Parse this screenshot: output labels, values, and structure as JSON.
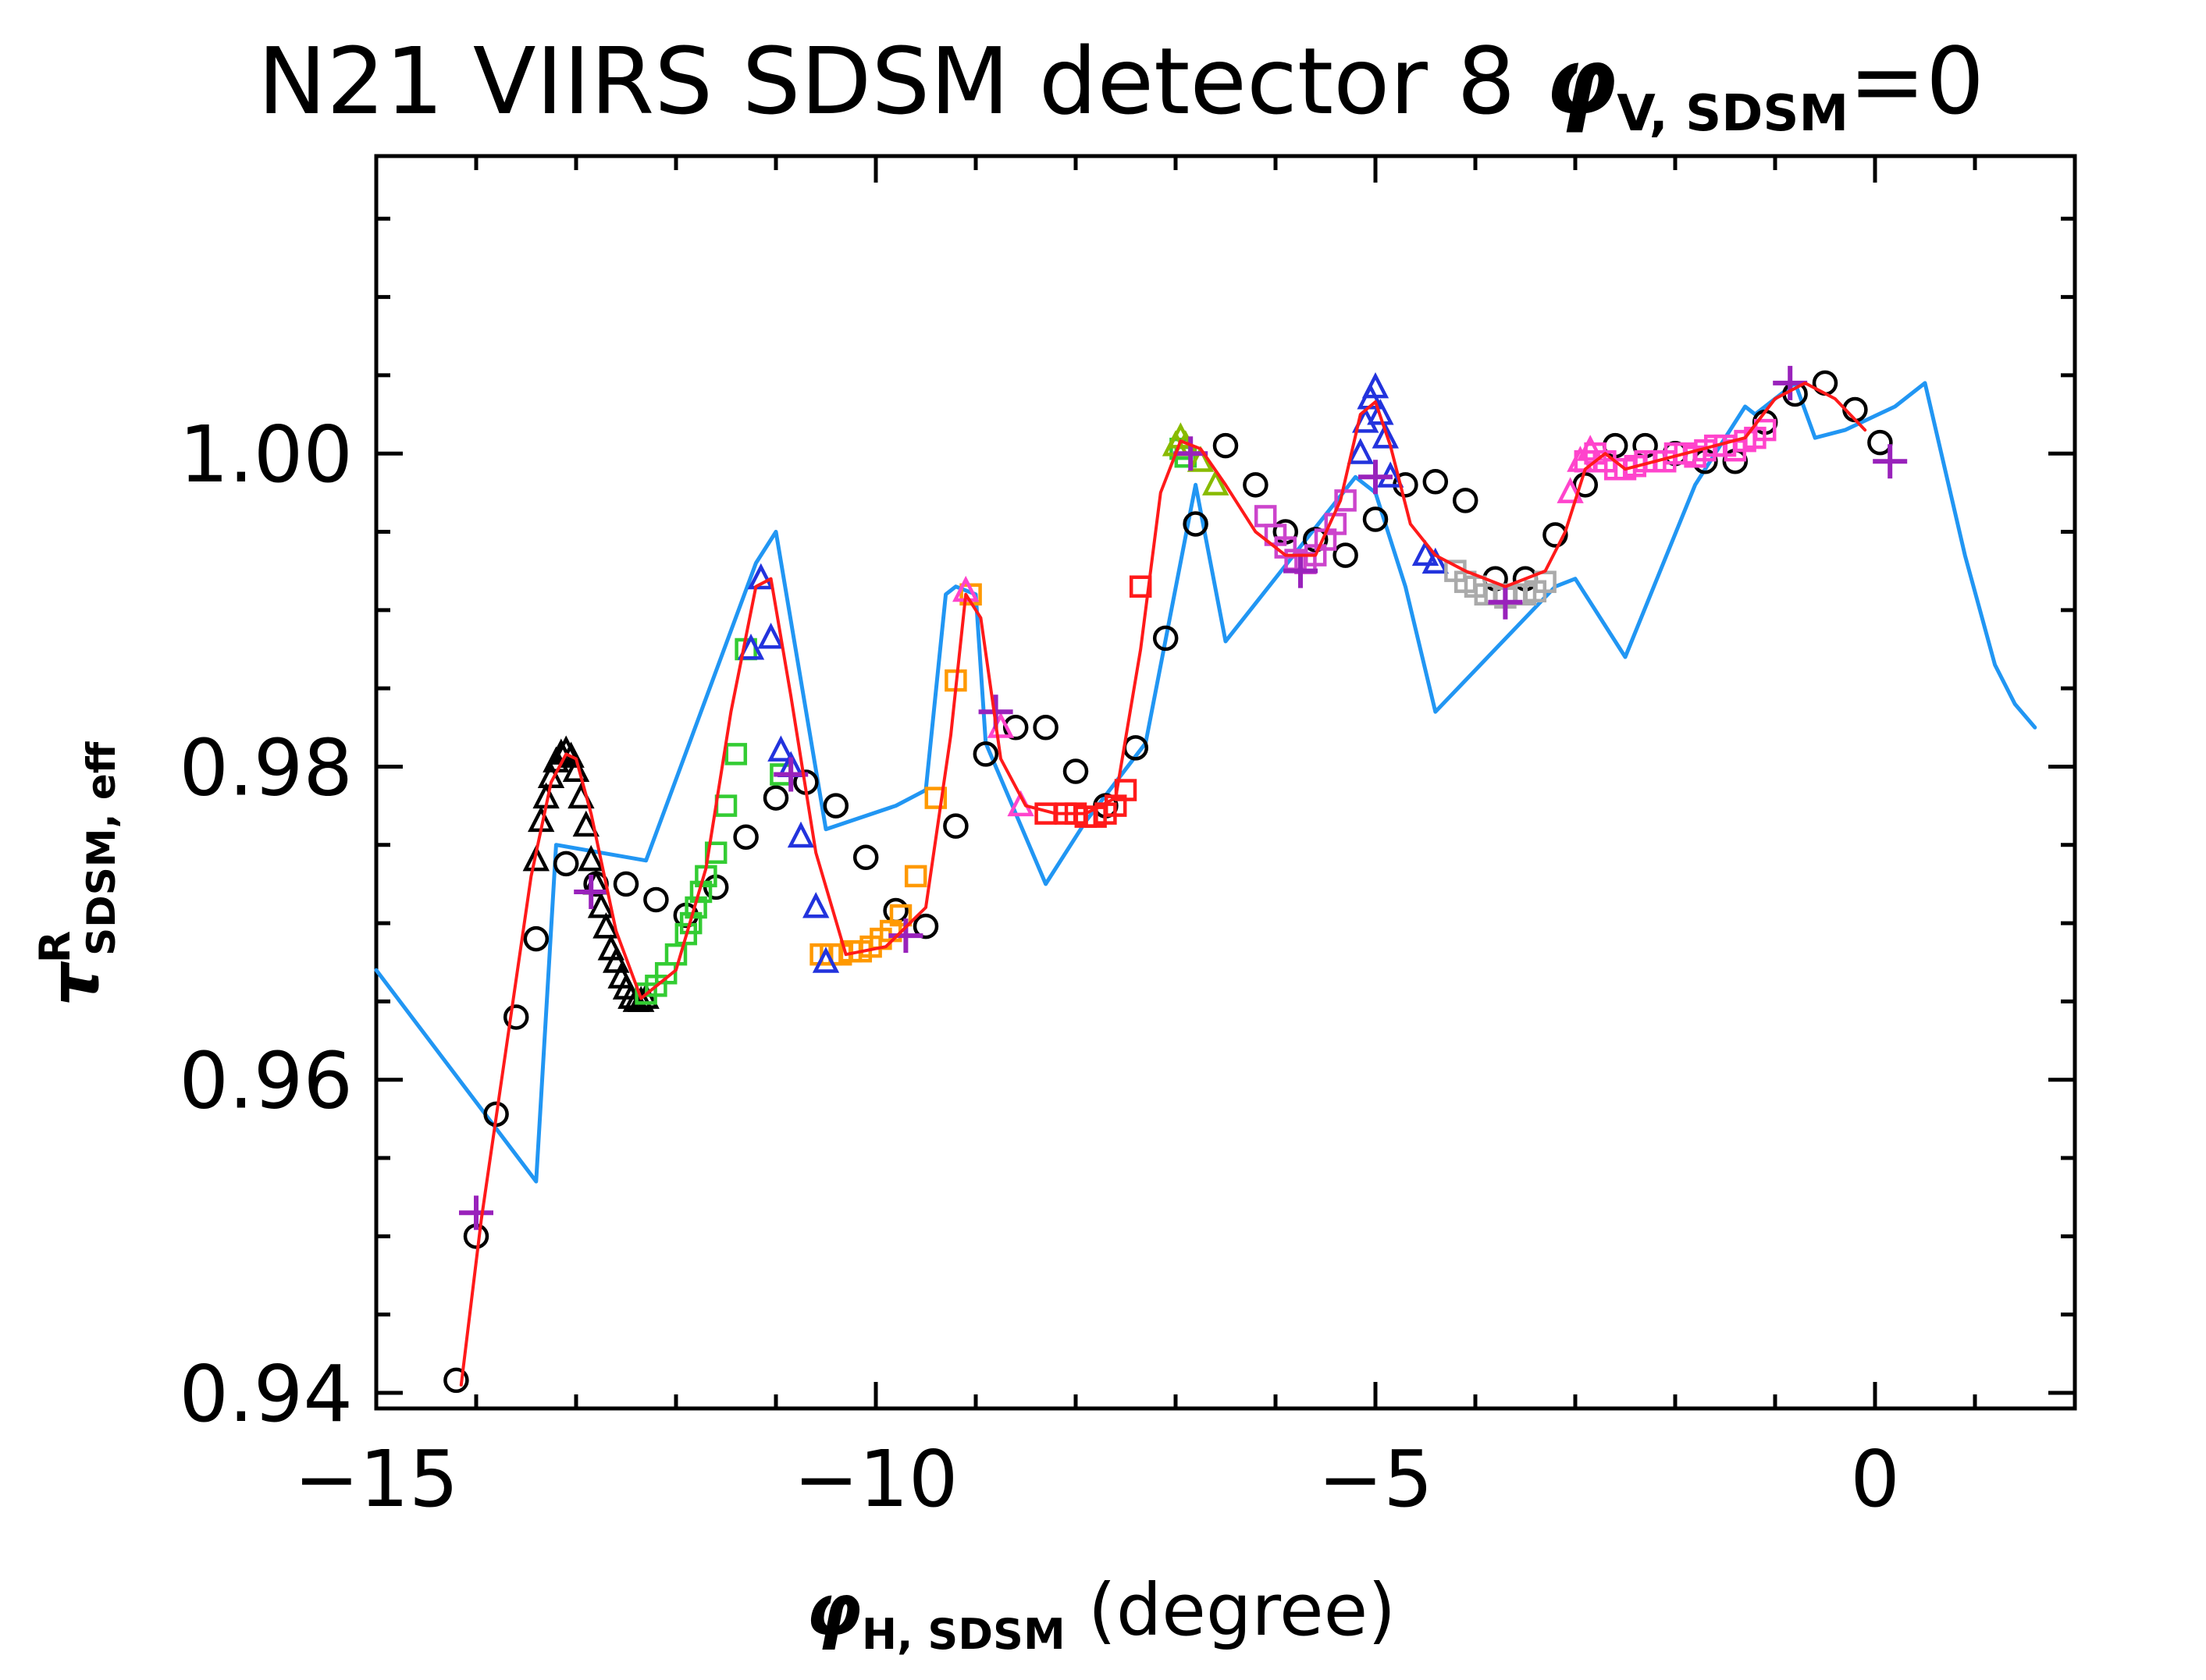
{
  "chart_data": {
    "type": "scatter",
    "title": {
      "prefix": "N21 VIIRS SDSM detector 8 ",
      "symbol": "φ",
      "subscript": "V, SDSM",
      "suffix": "=0"
    },
    "xlabel": {
      "symbol": "φ",
      "subscript": "H, SDSM",
      "suffix": " (degree)"
    },
    "ylabel": {
      "symbol": "τ",
      "superscript": "R",
      "subscript": "SDSM, eff"
    },
    "xlim": [
      -15,
      2
    ],
    "ylim": [
      0.939,
      1.019
    ],
    "x_ticks": [
      -15,
      -10,
      -5,
      0
    ],
    "x_tick_labels": [
      "−15",
      "−10",
      "−5",
      "0"
    ],
    "x_minor_step": 1,
    "y_ticks": [
      0.94,
      0.96,
      0.98,
      1.0
    ],
    "y_tick_labels": [
      "0.94",
      "0.96",
      "0.98",
      "1.00"
    ],
    "y_minor_step": 0.005,
    "grid": false,
    "legend": "none",
    "series": [
      {
        "name": "blue line",
        "kind": "line",
        "color": "#2196F3",
        "x": [
          -15.0,
          -13.4,
          -13.2,
          -12.3,
          -11.2,
          -11.0,
          -10.5,
          -9.8,
          -9.5,
          -9.3,
          -9.2,
          -9.0,
          -8.9,
          -8.3,
          -7.9,
          -7.3,
          -6.8,
          -6.5,
          -5.2,
          -5.0,
          -4.7,
          -4.4,
          -3.2,
          -3.0,
          -2.7,
          -2.5,
          -1.8,
          -1.3,
          -1.2,
          -1.0,
          -0.8,
          -0.6,
          -0.3,
          0.2,
          0.5,
          0.9,
          1.2,
          1.4,
          1.6
        ],
        "y": [
          0.967,
          0.9535,
          0.975,
          0.974,
          0.993,
          0.995,
          0.976,
          0.9775,
          0.9785,
          0.991,
          0.9915,
          0.991,
          0.9815,
          0.9725,
          0.9765,
          0.9815,
          0.998,
          0.988,
          0.9985,
          0.9975,
          0.9915,
          0.9835,
          0.9915,
          0.992,
          0.989,
          0.987,
          0.998,
          1.003,
          1.0025,
          1.0035,
          1.0045,
          1.001,
          1.0015,
          1.003,
          1.0045,
          0.9935,
          0.9865,
          0.984,
          0.9825
        ]
      },
      {
        "name": "red model",
        "kind": "line",
        "color": "#FF1A1A",
        "x": [
          -14.15,
          -13.95,
          -13.7,
          -13.45,
          -13.25,
          -13.1,
          -13.0,
          -12.85,
          -12.6,
          -12.35,
          -12.0,
          -11.7,
          -11.45,
          -11.2,
          -11.05,
          -10.85,
          -10.6,
          -10.3,
          -9.9,
          -9.5,
          -9.25,
          -9.1,
          -8.95,
          -8.75,
          -8.5,
          -8.2,
          -7.9,
          -7.6,
          -7.35,
          -7.15,
          -6.95,
          -6.75,
          -6.5,
          -6.2,
          -5.9,
          -5.6,
          -5.35,
          -5.15,
          -5.0,
          -4.85,
          -4.65,
          -4.4,
          -4.1,
          -3.7,
          -3.3,
          -3.1,
          -2.9,
          -2.7,
          -2.5,
          -2.2,
          -1.9,
          -1.6,
          -1.3,
          -1.0,
          -0.7,
          -0.4,
          -0.1
        ],
        "y": [
          0.9405,
          0.951,
          0.962,
          0.973,
          0.979,
          0.9808,
          0.9805,
          0.977,
          0.9695,
          0.9652,
          0.967,
          0.9735,
          0.9835,
          0.9915,
          0.992,
          0.9845,
          0.9745,
          0.968,
          0.9685,
          0.971,
          0.982,
          0.991,
          0.9895,
          0.9805,
          0.9775,
          0.977,
          0.977,
          0.978,
          0.9875,
          0.9975,
          1.0008,
          1.0003,
          0.998,
          0.995,
          0.9935,
          0.9935,
          0.997,
          1.0025,
          1.0033,
          1.0005,
          0.9955,
          0.9935,
          0.9925,
          0.9915,
          0.9925,
          0.995,
          0.999,
          1.0,
          0.999,
          0.9995,
          1.0,
          1.0005,
          1.001,
          1.0035,
          1.0045,
          1.0035,
          1.0015
        ]
      },
      {
        "name": "black circles",
        "kind": "scatter",
        "marker": "circle",
        "color": "#000000",
        "x": [
          -14.2,
          -14.0,
          -13.8,
          -13.6,
          -13.4,
          -13.1,
          -12.8,
          -12.5,
          -12.2,
          -11.9,
          -11.6,
          -11.3,
          -11.0,
          -10.7,
          -10.4,
          -10.1,
          -9.8,
          -9.5,
          -9.2,
          -8.9,
          -8.6,
          -8.3,
          -8.0,
          -7.7,
          -7.4,
          -7.1,
          -6.8,
          -6.5,
          -6.2,
          -5.9,
          -5.6,
          -5.3,
          -5.0,
          -4.7,
          -4.4,
          -4.1,
          -3.8,
          -3.5,
          -3.2,
          -2.9,
          -2.6,
          -2.3,
          -2.0,
          -1.7,
          -1.4,
          -1.1,
          -0.8,
          -0.5,
          -0.2,
          0.05
        ],
        "y": [
          0.9408,
          0.95,
          0.9578,
          0.964,
          0.969,
          0.9738,
          0.9725,
          0.9725,
          0.9715,
          0.9705,
          0.9723,
          0.9755,
          0.978,
          0.979,
          0.9775,
          0.9742,
          0.9708,
          0.9698,
          0.9762,
          0.9808,
          0.9825,
          0.9825,
          0.9797,
          0.9775,
          0.9812,
          0.9882,
          0.9955,
          1.0005,
          0.998,
          0.995,
          0.9945,
          0.9935,
          0.9958,
          0.998,
          0.9982,
          0.997,
          0.992,
          0.992,
          0.9948,
          0.998,
          1.0005,
          1.0005,
          1.0,
          0.9995,
          0.9995,
          1.002,
          1.0038,
          1.0045,
          1.0028,
          1.0007
        ]
      },
      {
        "name": "black triangles",
        "kind": "scatter",
        "marker": "triangle",
        "color": "#000000",
        "x": [
          -13.4,
          -13.35,
          -13.3,
          -13.25,
          -13.2,
          -13.15,
          -13.1,
          -13.05,
          -13.0,
          -12.95,
          -12.9,
          -12.85,
          -12.8,
          -12.75,
          -12.7,
          -12.65,
          -12.6,
          -12.55,
          -12.5,
          -12.45,
          -12.4,
          -12.35,
          -12.3
        ],
        "y": [
          0.974,
          0.9765,
          0.978,
          0.9793,
          0.9803,
          0.9808,
          0.981,
          0.9806,
          0.9797,
          0.978,
          0.9762,
          0.974,
          0.9725,
          0.971,
          0.9697,
          0.9683,
          0.9675,
          0.9665,
          0.9658,
          0.9652,
          0.965,
          0.965,
          0.9652
        ]
      },
      {
        "name": "green squares",
        "kind": "scatter",
        "marker": "square",
        "color": "#33CC33",
        "x": [
          -12.3,
          -12.2,
          -12.1,
          -12.0,
          -11.9,
          -11.85,
          -11.8,
          -11.75,
          -11.7,
          -11.6,
          -11.5,
          -11.4,
          -11.3,
          -10.95,
          -6.95,
          -6.9
        ],
        "y": [
          0.9655,
          0.966,
          0.9668,
          0.968,
          0.9693,
          0.97,
          0.971,
          0.972,
          0.973,
          0.9745,
          0.9775,
          0.9808,
          0.9875,
          0.9795,
          1.0003,
          0.9998
        ]
      },
      {
        "name": "orange squares",
        "kind": "scatter",
        "marker": "square",
        "color": "#FF9900",
        "x": [
          -10.55,
          -10.45,
          -10.35,
          -10.25,
          -10.15,
          -10.05,
          -9.95,
          -9.85,
          -9.75,
          -9.6,
          -9.4,
          -9.2,
          -9.05
        ],
        "y": [
          0.968,
          0.968,
          0.968,
          0.9682,
          0.9682,
          0.9685,
          0.969,
          0.9695,
          0.9705,
          0.973,
          0.978,
          0.9855,
          0.991
        ]
      },
      {
        "name": "red squares",
        "kind": "scatter",
        "marker": "square",
        "color": "#FF1A1A",
        "x": [
          -8.3,
          -8.1,
          -8.0,
          -7.9,
          -7.8,
          -7.7,
          -7.6,
          -7.5,
          -7.35
        ],
        "y": [
          0.977,
          0.977,
          0.977,
          0.9768,
          0.9768,
          0.977,
          0.9775,
          0.9785,
          0.9915
        ]
      },
      {
        "name": "blue triangles",
        "kind": "scatter",
        "marker": "triangle",
        "color": "#2233DD",
        "x": [
          -11.25,
          -11.15,
          -11.05,
          -10.95,
          -10.85,
          -10.75,
          -10.6,
          -10.5,
          -5.15,
          -5.1,
          -5.05,
          -5.0,
          -4.95,
          -4.9,
          -4.85,
          -4.5,
          -4.4
        ],
        "y": [
          0.9875,
          0.992,
          0.9882,
          0.981,
          0.98,
          0.9755,
          0.971,
          0.9675,
          1.0,
          1.002,
          1.0035,
          1.0042,
          1.0025,
          1.001,
          0.9985,
          0.9935,
          0.993
        ]
      },
      {
        "name": "purple squares",
        "kind": "scatter",
        "marker": "square",
        "color": "#CC44CC",
        "x": [
          -6.1,
          -6.0,
          -5.9,
          -5.8,
          -5.7,
          -5.6,
          -5.5,
          -5.4,
          -5.3
        ],
        "y": [
          0.996,
          0.9948,
          0.994,
          0.9932,
          0.993,
          0.9935,
          0.9945,
          0.9955,
          0.997
        ]
      },
      {
        "name": "gray squares",
        "kind": "scatter",
        "marker": "square",
        "color": "#AAAAAA",
        "x": [
          -4.2,
          -4.1,
          -4.0,
          -3.9,
          -3.8,
          -3.7,
          -3.6,
          -3.5,
          -3.4,
          -3.3
        ],
        "y": [
          0.9925,
          0.9918,
          0.9915,
          0.991,
          0.991,
          0.9908,
          0.991,
          0.991,
          0.9912,
          0.9918
        ]
      },
      {
        "name": "magenta squares",
        "kind": "scatter",
        "marker": "square",
        "color": "#FF44CC",
        "x": [
          -2.9,
          -2.8,
          -2.7,
          -2.6,
          -2.5,
          -2.4,
          -2.3,
          -2.2,
          -2.1,
          -2.0,
          -1.9,
          -1.8,
          -1.7,
          -1.6,
          -1.5,
          -1.4,
          -1.3,
          -1.2,
          -1.1
        ],
        "y": [
          0.9995,
          1.0,
          0.9995,
          0.999,
          0.999,
          0.9992,
          0.9995,
          0.9995,
          0.9995,
          1.0,
          1.0,
          0.9998,
          1.0002,
          1.0005,
          1.0005,
          1.0002,
          1.0008,
          1.001,
          1.0015
        ]
      },
      {
        "name": "magenta triangles",
        "kind": "scatter",
        "marker": "triangle",
        "color": "#FF44CC",
        "x": [
          -3.05,
          -2.95,
          -2.85,
          -9.1,
          -8.75,
          -8.55
        ],
        "y": [
          0.9975,
          0.9995,
          1.0002,
          0.9912,
          0.9825,
          0.9775
        ]
      },
      {
        "name": "olive triangles",
        "kind": "scatter",
        "marker": "triangle",
        "color": "#88BB00",
        "x": [
          -7.0,
          -6.95,
          -6.9,
          -6.75,
          -6.6
        ],
        "y": [
          1.0005,
          1.001,
          1.0005,
          0.9995,
          0.998
        ]
      },
      {
        "name": "purple pluses",
        "kind": "scatter",
        "marker": "plus",
        "color": "#9922BB",
        "x": [
          -14.0,
          -12.85,
          -10.85,
          -8.8,
          -5.75,
          -5.0,
          -3.7,
          -0.85,
          0.15,
          -9.7,
          -6.85
        ],
        "y": [
          0.9515,
          0.972,
          0.9795,
          0.9835,
          0.9925,
          0.9985,
          0.9905,
          1.0045,
          0.9995,
          0.9692,
          1.0
        ]
      }
    ]
  }
}
